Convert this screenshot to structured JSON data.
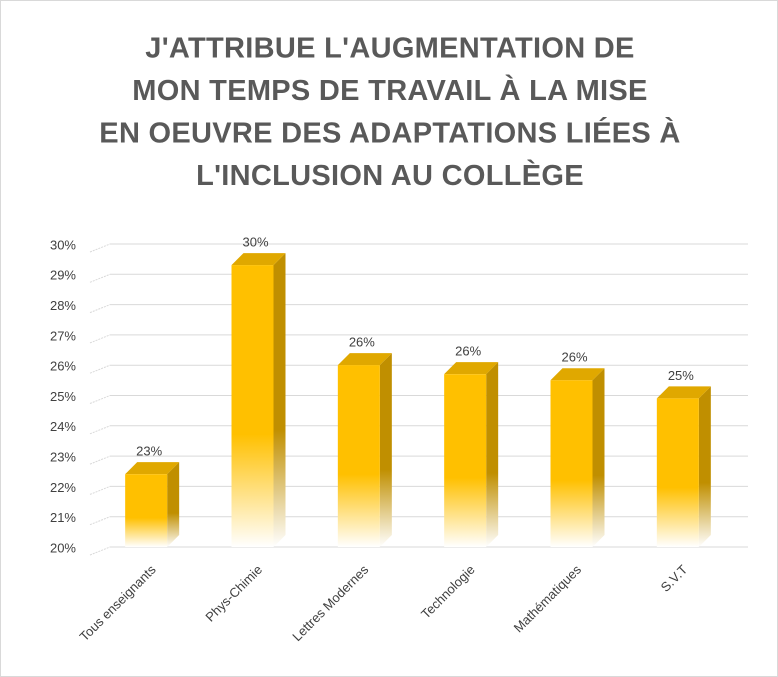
{
  "chart_data": {
    "type": "bar3d",
    "title": [
      "J'ATTRIBUE L'AUGMENTATION DE",
      "MON TEMPS DE TRAVAIL À LA MISE",
      "EN OEUVRE DES ADAPTATIONS LIÉES À",
      "L'INCLUSION AU COLLÈGE"
    ],
    "categories": [
      "Tous enseignants",
      "Phys-Chimie",
      "Lettres Modernes",
      "Technologie",
      "Mathématiques",
      "S.V.T"
    ],
    "values": [
      22.8,
      29.7,
      26.4,
      26.1,
      25.9,
      25.3
    ],
    "value_labels": [
      "23%",
      "30%",
      "26%",
      "26%",
      "26%",
      "25%"
    ],
    "color": "#ffc000",
    "ylim": [
      20,
      30
    ],
    "yticks": [
      {
        "value": 20,
        "label": "20%"
      },
      {
        "value": 21,
        "label": "21%"
      },
      {
        "value": 22,
        "label": "22%"
      },
      {
        "value": 23,
        "label": "23%"
      },
      {
        "value": 24,
        "label": "24%"
      },
      {
        "value": 25,
        "label": "25%"
      },
      {
        "value": 26,
        "label": "26%"
      },
      {
        "value": 27,
        "label": "27%"
      },
      {
        "value": 28,
        "label": "28%"
      },
      {
        "value": 29,
        "label": "29%"
      },
      {
        "value": 30,
        "label": "30%"
      }
    ],
    "grid": true
  }
}
